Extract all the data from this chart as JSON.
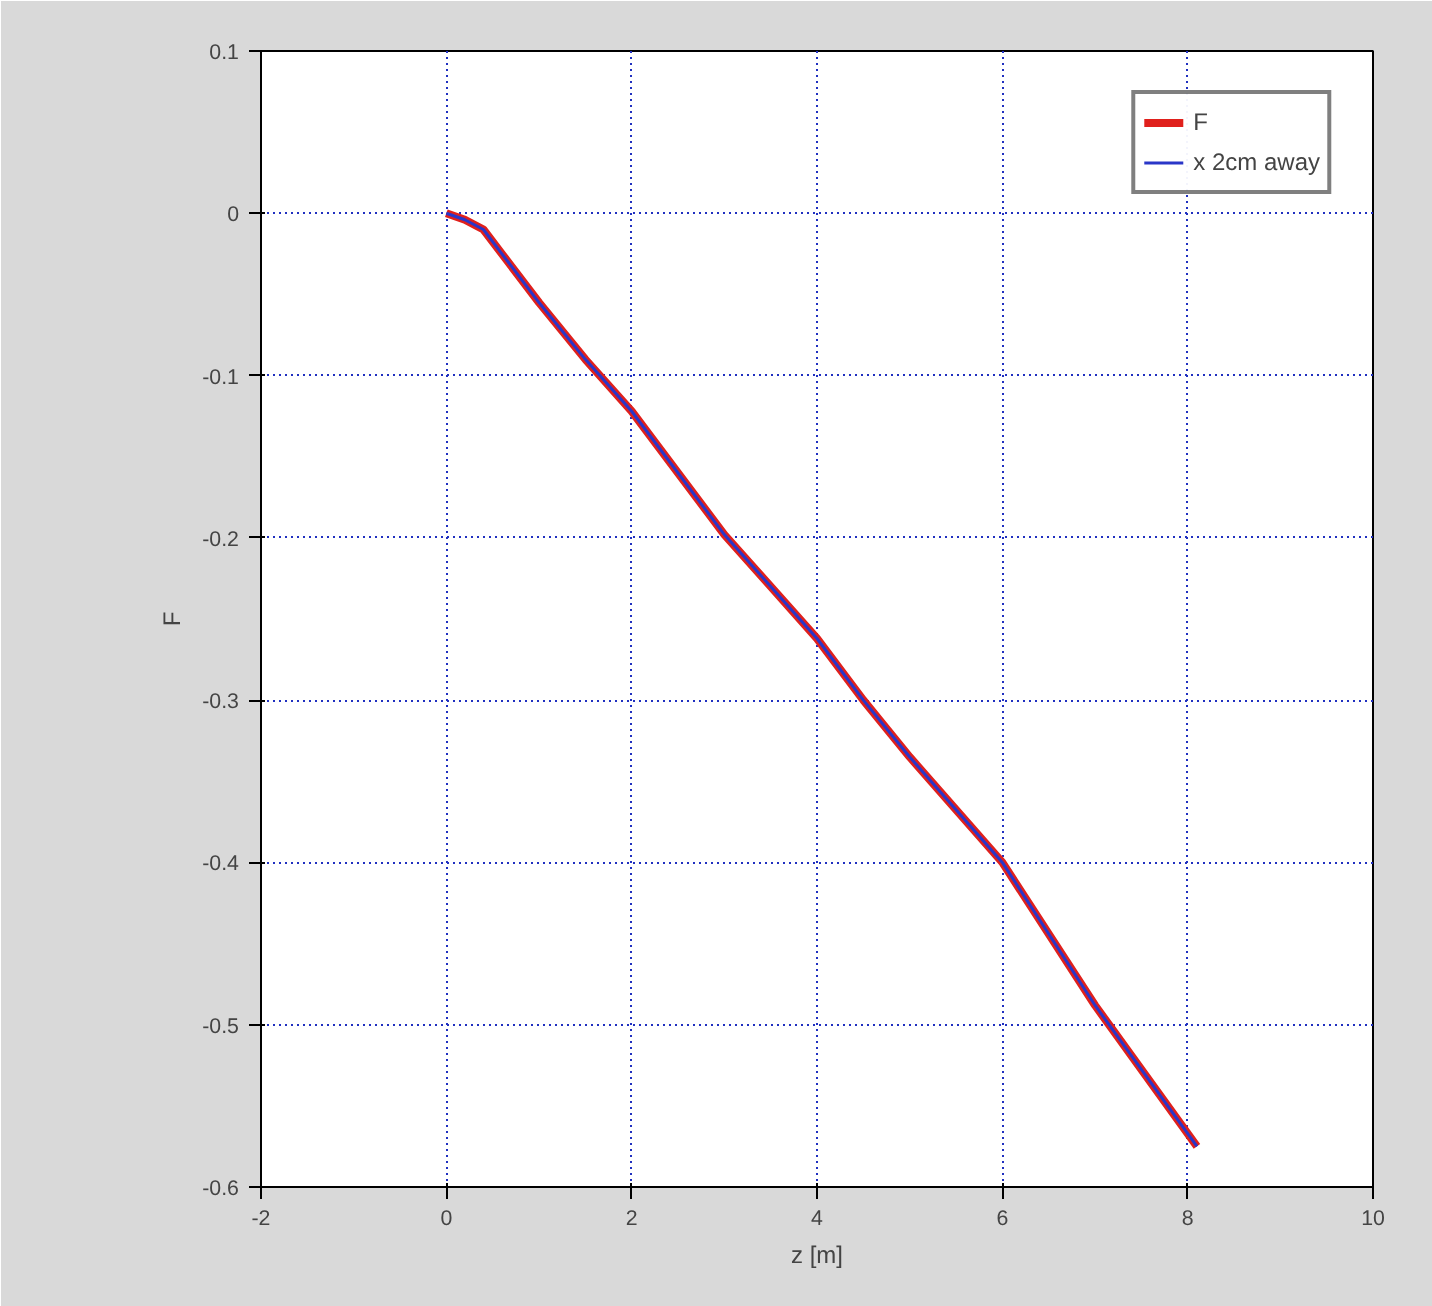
{
  "chart_data": {
    "type": "line",
    "xlabel": "z [m]",
    "ylabel": "F",
    "xlim": [
      -2,
      10
    ],
    "xticks": [
      -2,
      0,
      2,
      4,
      6,
      8,
      10
    ],
    "ylim": [
      -0.6,
      0.1
    ],
    "yticks": [
      -0.6,
      -0.5,
      -0.4,
      -0.3,
      -0.2,
      -0.1,
      0,
      0.1
    ],
    "grid": true,
    "legend": "top right",
    "marker": "none",
    "line_style": "solid",
    "series": [
      {
        "name": "F",
        "color": "#e0201c",
        "x": [
          0,
          0.2,
          0.4,
          0.6,
          1,
          1.5,
          2,
          3,
          4,
          4.5,
          5,
          6,
          7,
          8.1
        ],
        "values": [
          0,
          -0.004,
          -0.01,
          -0.025,
          -0.055,
          -0.09,
          -0.122,
          -0.198,
          -0.262,
          -0.3,
          -0.335,
          -0.4,
          -0.488,
          -0.575
        ]
      },
      {
        "name": "x 2cm away",
        "color": "#2a36c8",
        "x": [
          0,
          0.2,
          0.4,
          0.6,
          1,
          1.5,
          2,
          3,
          4,
          4.5,
          5,
          6,
          7,
          8.1
        ],
        "values": [
          0,
          -0.004,
          -0.01,
          -0.025,
          -0.055,
          -0.09,
          -0.122,
          -0.198,
          -0.262,
          -0.3,
          -0.335,
          -0.4,
          -0.488,
          -0.575
        ]
      }
    ]
  }
}
